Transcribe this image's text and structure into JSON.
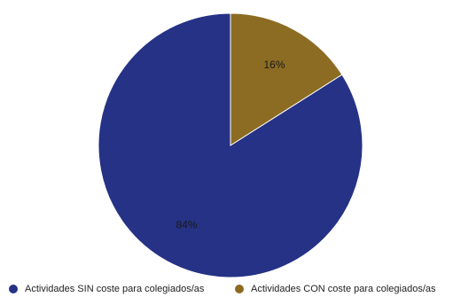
{
  "chart_data": {
    "type": "pie",
    "title": "",
    "legend_position": "bottom",
    "slices": [
      {
        "label": "Actividades SIN coste para colegiados/as",
        "value": 84,
        "value_label": "84%",
        "color": "#253285"
      },
      {
        "label": "Actividades CON coste para colegiados/as",
        "value": 16,
        "value_label": "16%",
        "color": "#8c6c22"
      }
    ]
  }
}
